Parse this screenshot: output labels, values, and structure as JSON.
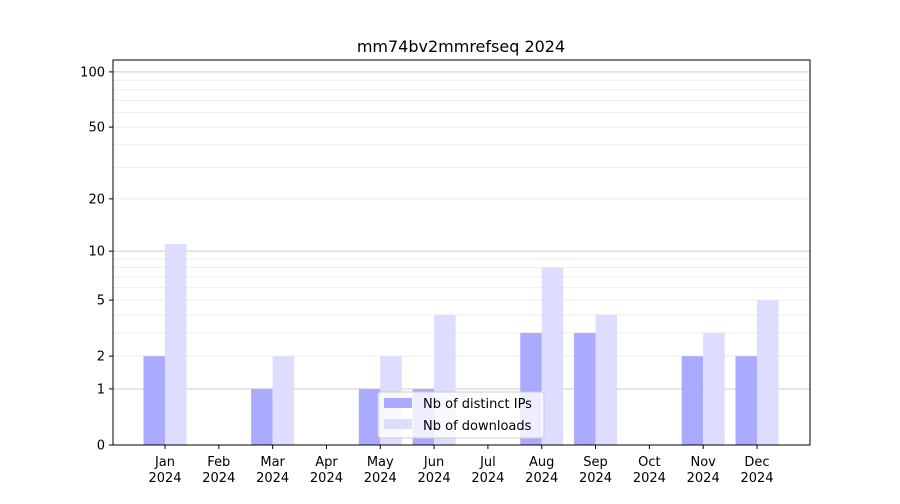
{
  "chart_data": {
    "type": "bar",
    "title": "mm74bv2mmrefseq 2024",
    "xlabel": "",
    "ylabel": "",
    "yscale": "log(1+y)",
    "ylim": [
      0,
      116
    ],
    "yticks": [
      0,
      1,
      2,
      5,
      10,
      20,
      50,
      100
    ],
    "grid": true,
    "legend_position": "bottom-center",
    "categories": [
      [
        "Jan",
        "2024"
      ],
      [
        "Feb",
        "2024"
      ],
      [
        "Mar",
        "2024"
      ],
      [
        "Apr",
        "2024"
      ],
      [
        "May",
        "2024"
      ],
      [
        "Jun",
        "2024"
      ],
      [
        "Jul",
        "2024"
      ],
      [
        "Aug",
        "2024"
      ],
      [
        "Sep",
        "2024"
      ],
      [
        "Oct",
        "2024"
      ],
      [
        "Nov",
        "2024"
      ],
      [
        "Dec",
        "2024"
      ]
    ],
    "series": [
      {
        "name": "Nb of distinct IPs",
        "color": "#aaaaff",
        "values": [
          2,
          0,
          1,
          0,
          1,
          1,
          0,
          3,
          3,
          0,
          2,
          2
        ]
      },
      {
        "name": "Nb of downloads",
        "color": "#ddddff",
        "values": [
          11,
          0,
          2,
          0,
          2,
          4,
          0,
          8,
          4,
          0,
          3,
          5
        ]
      }
    ]
  }
}
